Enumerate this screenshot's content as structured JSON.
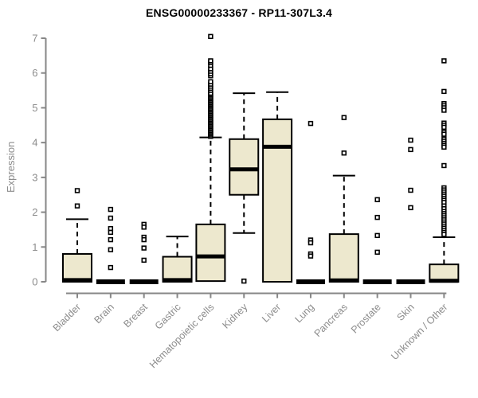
{
  "chart_data": {
    "type": "boxplot",
    "title": "ENSG00000233367 - RP11-307L3.4",
    "ylabel": "Expression",
    "xlabel": "",
    "ylim": [
      0,
      7
    ],
    "yticks": [
      0,
      1,
      2,
      3,
      4,
      5,
      6,
      7
    ],
    "grid": false,
    "legend": "none",
    "colors": {
      "box_fill": "#EDE8CE",
      "box_stroke": "#000000",
      "median": "#000000",
      "outlier_stroke": "#000000",
      "axis": "#878787",
      "tick_label": "#8c8c8c",
      "title": "#000000"
    },
    "categories": [
      "Bladder",
      "Brain",
      "Breast",
      "Gastric",
      "Hematopoietic cells",
      "Kidney",
      "Liver",
      "Lung",
      "Pancreas",
      "Prostate",
      "Skin",
      "Unknown / Other"
    ],
    "boxes": [
      {
        "category": "Bladder",
        "q1": 0,
        "median": 0.05,
        "q3": 0.8,
        "whisker_low": 0,
        "whisker_high": 1.8,
        "outliers": [
          2.62,
          2.18
        ]
      },
      {
        "category": "Brain",
        "q1": 0,
        "median": 0,
        "q3": 0,
        "whisker_low": 0,
        "whisker_high": 0,
        "outliers": [
          2.08,
          1.83,
          1.53,
          1.42,
          1.21,
          0.92,
          0.41
        ]
      },
      {
        "category": "Breast",
        "q1": 0,
        "median": 0,
        "q3": 0,
        "whisker_low": 0,
        "whisker_high": 0,
        "outliers": [
          1.65,
          1.57,
          1.28,
          1.21,
          0.97,
          0.62
        ]
      },
      {
        "category": "Gastric",
        "q1": 0,
        "median": 0.05,
        "q3": 0.72,
        "whisker_low": 0,
        "whisker_high": 1.3,
        "outliers": []
      },
      {
        "category": "Hematopoietic cells",
        "q1": 0.02,
        "median": 0.73,
        "q3": 1.65,
        "whisker_low": 0.02,
        "whisker_high": 4.15,
        "outliers": [
          4.18,
          4.22,
          4.26,
          4.3,
          4.34,
          4.38,
          4.42,
          4.46,
          4.5,
          4.54,
          4.58,
          4.62,
          4.66,
          4.7,
          4.74,
          4.78,
          4.82,
          4.86,
          4.9,
          4.94,
          4.98,
          5.02,
          5.06,
          5.1,
          5.14,
          5.18,
          5.22,
          5.26,
          5.3,
          5.34,
          5.38,
          5.42,
          5.5,
          5.56,
          5.62,
          5.68,
          5.75,
          5.92,
          5.98,
          6.05,
          6.12,
          6.22,
          6.3,
          6.35,
          7.05
        ]
      },
      {
        "category": "Kidney",
        "q1": 2.5,
        "median": 3.23,
        "q3": 4.1,
        "whisker_low": 1.4,
        "whisker_high": 5.42,
        "outliers": [
          0.02
        ]
      },
      {
        "category": "Liver",
        "q1": 0,
        "median": 3.88,
        "q3": 4.67,
        "whisker_low": 0,
        "whisker_high": 5.45,
        "outliers": []
      },
      {
        "category": "Lung",
        "q1": 0,
        "median": 0,
        "q3": 0,
        "whisker_low": 0,
        "whisker_high": 0,
        "outliers": [
          4.55,
          1.2,
          1.12,
          0.8,
          0.74
        ]
      },
      {
        "category": "Pancreas",
        "q1": 0,
        "median": 0.04,
        "q3": 1.37,
        "whisker_low": 0,
        "whisker_high": 3.05,
        "outliers": [
          4.72,
          3.7
        ]
      },
      {
        "category": "Prostate",
        "q1": 0,
        "median": 0,
        "q3": 0,
        "whisker_low": 0,
        "whisker_high": 0,
        "outliers": [
          2.36,
          1.85,
          1.33,
          0.85
        ]
      },
      {
        "category": "Skin",
        "q1": 0,
        "median": 0,
        "q3": 0,
        "whisker_low": 0,
        "whisker_high": 0,
        "outliers": [
          4.07,
          3.8,
          2.63,
          2.13
        ]
      },
      {
        "category": "Unknown / Other",
        "q1": 0,
        "median": 0.03,
        "q3": 0.5,
        "whisker_low": 0,
        "whisker_high": 1.28,
        "outliers": [
          6.35,
          5.47,
          5.12,
          5.06,
          5.0,
          4.93,
          4.56,
          4.5,
          4.44,
          4.3,
          4.24,
          4.1,
          4.04,
          3.98,
          3.92,
          3.87,
          3.34,
          2.7,
          2.64,
          2.58,
          2.52,
          2.46,
          2.4,
          2.34,
          2.28,
          2.18,
          2.1,
          2.02,
          1.96,
          1.9,
          1.84,
          1.78,
          1.72,
          1.66,
          1.6,
          1.54,
          1.48,
          1.42,
          1.36
        ]
      }
    ]
  }
}
